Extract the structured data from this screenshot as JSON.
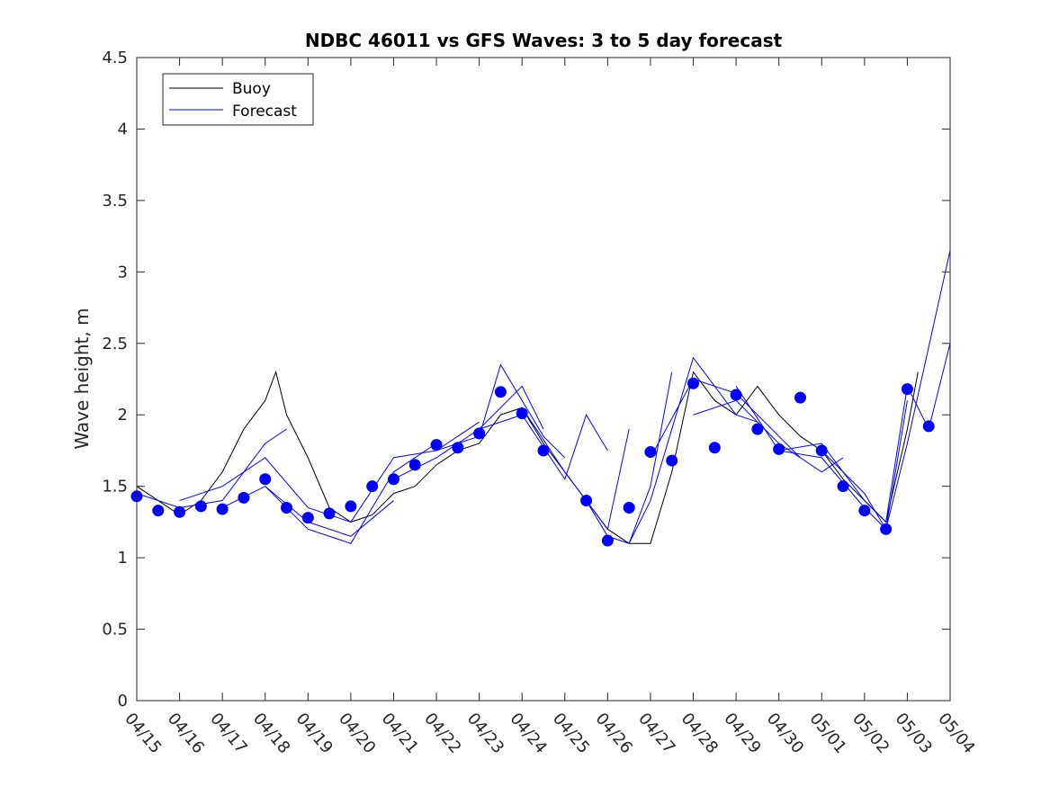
{
  "chart_data": {
    "type": "line",
    "title": "NDBC 46011 vs GFS Waves: 3 to 5 day forecast",
    "xlabel": "",
    "ylabel": "Wave height, m",
    "x_start": "04/15",
    "x_end": "05/04",
    "xticks": [
      "04/15",
      "04/16",
      "04/17",
      "04/18",
      "04/19",
      "04/20",
      "04/21",
      "04/22",
      "04/23",
      "04/24",
      "04/25",
      "04/26",
      "04/27",
      "04/28",
      "04/29",
      "04/30",
      "05/01",
      "05/02",
      "05/03",
      "05/04"
    ],
    "ylim": [
      0,
      4.5
    ],
    "yticks": [
      "0",
      "0.5",
      "1",
      "1.5",
      "2",
      "2.5",
      "3",
      "3.5",
      "4",
      "4.5"
    ],
    "grid": false,
    "legend_placement": "top-left",
    "colors": {
      "buoy": "#000000",
      "forecast": "#0000ff"
    },
    "series": [
      {
        "name": "Buoy",
        "color": "#000000",
        "points": [
          [
            "04/15 00:00",
            1.5
          ],
          [
            "04/15 12:00",
            1.4
          ],
          [
            "04/16 00:00",
            1.3
          ],
          [
            "04/16 12:00",
            1.4
          ],
          [
            "04/17 00:00",
            1.6
          ],
          [
            "04/17 12:00",
            1.9
          ],
          [
            "04/18 00:00",
            2.1
          ],
          [
            "04/18 06:00",
            2.3
          ],
          [
            "04/18 12:00",
            2.0
          ],
          [
            "04/19 00:00",
            1.7
          ],
          [
            "04/19 12:00",
            1.35
          ],
          [
            "04/20 00:00",
            1.25
          ],
          [
            "04/20 12:00",
            1.3
          ],
          [
            "04/21 00:00",
            1.45
          ],
          [
            "04/21 12:00",
            1.5
          ],
          [
            "04/22 00:00",
            1.65
          ],
          [
            "04/22 12:00",
            1.75
          ],
          [
            "04/23 00:00",
            1.8
          ],
          [
            "04/23 12:00",
            2.0
          ],
          [
            "04/24 00:00",
            2.05
          ],
          [
            "04/24 12:00",
            1.8
          ],
          [
            "04/25 00:00",
            1.6
          ],
          [
            "04/25 12:00",
            1.4
          ],
          [
            "04/26 00:00",
            1.2
          ],
          [
            "04/26 12:00",
            1.1
          ],
          [
            "04/27 00:00",
            1.1
          ],
          [
            "04/27 12:00",
            1.6
          ],
          [
            "04/28 00:00",
            2.3
          ],
          [
            "04/28 12:00",
            2.1
          ],
          [
            "04/29 00:00",
            2.0
          ],
          [
            "04/29 12:00",
            2.2
          ],
          [
            "04/30 00:00",
            2.0
          ],
          [
            "04/30 12:00",
            1.85
          ],
          [
            "05/01 00:00",
            1.75
          ],
          [
            "05/01 12:00",
            1.55
          ],
          [
            "05/02 00:00",
            1.4
          ],
          [
            "05/02 12:00",
            1.25
          ],
          [
            "05/03 00:00",
            1.9
          ],
          [
            "05/03 06:00",
            2.3
          ]
        ]
      },
      {
        "name": "Forecast",
        "color": "#0000ff",
        "runs": [
          [
            [
              "04/15 00:00",
              1.45
            ],
            [
              "04/16 00:00",
              1.35
            ],
            [
              "04/17 00:00",
              1.4
            ],
            [
              "04/18 00:00",
              1.8
            ],
            [
              "04/18 12:00",
              1.9
            ]
          ],
          [
            [
              "04/16 00:00",
              1.4
            ],
            [
              "04/17 00:00",
              1.5
            ],
            [
              "04/18 00:00",
              1.7
            ],
            [
              "04/19 00:00",
              1.35
            ],
            [
              "04/19 12:00",
              1.3
            ]
          ],
          [
            [
              "04/17 00:00",
              1.35
            ],
            [
              "04/18 00:00",
              1.5
            ],
            [
              "04/19 00:00",
              1.25
            ],
            [
              "04/20 00:00",
              1.15
            ],
            [
              "04/21 00:00",
              1.4
            ]
          ],
          [
            [
              "04/18 00:00",
              1.5
            ],
            [
              "04/19 00:00",
              1.2
            ],
            [
              "04/20 00:00",
              1.1
            ],
            [
              "04/21 00:00",
              1.6
            ],
            [
              "04/22 00:00",
              1.8
            ]
          ],
          [
            [
              "04/19 12:00",
              1.3
            ],
            [
              "04/20 00:00",
              1.25
            ],
            [
              "04/21 00:00",
              1.7
            ],
            [
              "04/22 00:00",
              1.75
            ],
            [
              "04/23 00:00",
              1.95
            ]
          ],
          [
            [
              "04/21 00:00",
              1.55
            ],
            [
              "04/22 00:00",
              1.7
            ],
            [
              "04/23 00:00",
              1.9
            ],
            [
              "04/24 00:00",
              2.2
            ],
            [
              "04/24 12:00",
              1.9
            ]
          ],
          [
            [
              "04/22 00:00",
              1.75
            ],
            [
              "04/23 00:00",
              1.85
            ],
            [
              "04/23 12:00",
              2.35
            ],
            [
              "04/24 12:00",
              1.85
            ],
            [
              "04/25 00:00",
              1.7
            ]
          ],
          [
            [
              "04/23 00:00",
              1.9
            ],
            [
              "04/24 00:00",
              2.0
            ],
            [
              "04/25 00:00",
              1.55
            ],
            [
              "04/25 12:00",
              2.0
            ],
            [
              "04/26 00:00",
              1.75
            ]
          ],
          [
            [
              "04/24 00:00",
              2.05
            ],
            [
              "04/25 00:00",
              1.6
            ],
            [
              "04/26 00:00",
              1.2
            ],
            [
              "04/26 12:00",
              1.9
            ]
          ],
          [
            [
              "04/25 12:00",
              1.4
            ],
            [
              "04/26 00:00",
              1.15
            ],
            [
              "04/26 12:00",
              1.1
            ],
            [
              "04/27 00:00",
              1.5
            ],
            [
              "04/27 12:00",
              2.3
            ]
          ],
          [
            [
              "04/26 12:00",
              1.1
            ],
            [
              "04/27 00:00",
              1.4
            ],
            [
              "04/28 00:00",
              2.4
            ],
            [
              "04/29 00:00",
              2.0
            ],
            [
              "04/29 12:00",
              1.95
            ]
          ],
          [
            [
              "04/27 00:00",
              1.7
            ],
            [
              "04/28 00:00",
              2.25
            ],
            [
              "04/29 00:00",
              2.15
            ],
            [
              "04/30 00:00",
              1.85
            ],
            [
              "04/30 12:00",
              1.7
            ]
          ],
          [
            [
              "04/28 00:00",
              2.0
            ],
            [
              "04/29 00:00",
              2.1
            ],
            [
              "04/30 00:00",
              1.8
            ],
            [
              "05/01 00:00",
              1.6
            ],
            [
              "05/01 12:00",
              1.7
            ]
          ],
          [
            [
              "04/29 00:00",
              2.2
            ],
            [
              "04/30 00:00",
              1.75
            ],
            [
              "05/01 00:00",
              1.8
            ],
            [
              "05/02 00:00",
              1.4
            ],
            [
              "05/02 12:00",
              1.25
            ]
          ],
          [
            [
              "04/30 00:00",
              1.75
            ],
            [
              "05/01 00:00",
              1.7
            ],
            [
              "05/02 00:00",
              1.35
            ],
            [
              "05/02 12:00",
              1.2
            ],
            [
              "05/03 00:00",
              2.1
            ]
          ],
          [
            [
              "05/01 00:00",
              1.75
            ],
            [
              "05/02 00:00",
              1.45
            ],
            [
              "05/02 12:00",
              1.2
            ],
            [
              "05/03 00:00",
              1.8
            ],
            [
              "05/04 00:00",
              3.15
            ]
          ],
          [
            [
              "05/02 00:00",
              1.4
            ],
            [
              "05/02 12:00",
              1.25
            ],
            [
              "05/03 00:00",
              2.2
            ],
            [
              "05/03 12:00",
              1.9
            ],
            [
              "05/04 00:00",
              2.5
            ]
          ]
        ],
        "markers": [
          [
            "04/15 00:00",
            1.43
          ],
          [
            "04/15 12:00",
            1.33
          ],
          [
            "04/16 00:00",
            1.32
          ],
          [
            "04/16 12:00",
            1.36
          ],
          [
            "04/17 00:00",
            1.34
          ],
          [
            "04/17 12:00",
            1.42
          ],
          [
            "04/18 00:00",
            1.55
          ],
          [
            "04/18 12:00",
            1.35
          ],
          [
            "04/19 00:00",
            1.28
          ],
          [
            "04/19 12:00",
            1.31
          ],
          [
            "04/20 00:00",
            1.36
          ],
          [
            "04/20 12:00",
            1.5
          ],
          [
            "04/21 00:00",
            1.55
          ],
          [
            "04/21 12:00",
            1.65
          ],
          [
            "04/22 00:00",
            1.79
          ],
          [
            "04/22 12:00",
            1.77
          ],
          [
            "04/23 00:00",
            1.87
          ],
          [
            "04/23 12:00",
            2.16
          ],
          [
            "04/24 00:00",
            2.01
          ],
          [
            "04/24 12:00",
            1.75
          ],
          [
            "04/25 12:00",
            1.4
          ],
          [
            "04/26 00:00",
            1.12
          ],
          [
            "04/26 12:00",
            1.35
          ],
          [
            "04/27 00:00",
            1.74
          ],
          [
            "04/27 12:00",
            1.68
          ],
          [
            "04/28 00:00",
            2.22
          ],
          [
            "04/28 12:00",
            1.77
          ],
          [
            "04/29 00:00",
            2.14
          ],
          [
            "04/29 12:00",
            1.9
          ],
          [
            "04/30 00:00",
            1.76
          ],
          [
            "04/30 12:00",
            2.12
          ],
          [
            "05/01 00:00",
            1.75
          ],
          [
            "05/01 12:00",
            1.5
          ],
          [
            "05/02 00:00",
            1.33
          ],
          [
            "05/02 12:00",
            1.2
          ],
          [
            "05/03 00:00",
            2.18
          ],
          [
            "05/03 12:00",
            1.92
          ]
        ]
      }
    ]
  }
}
